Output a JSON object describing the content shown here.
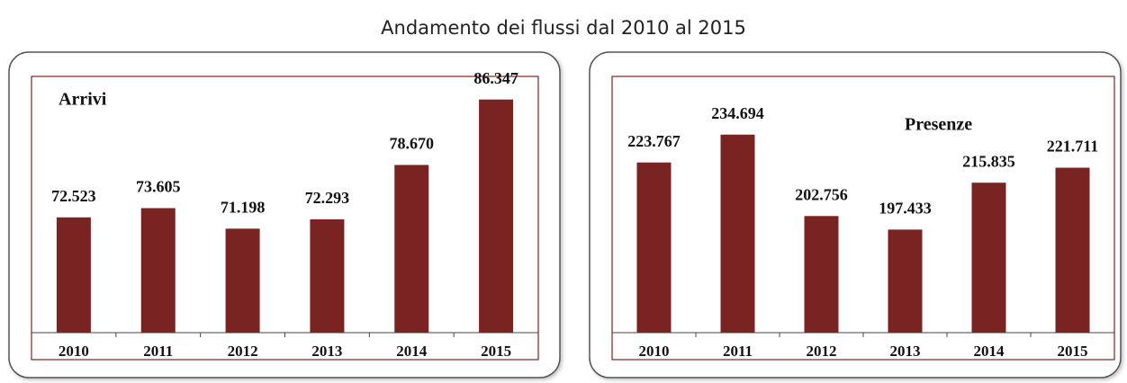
{
  "title": "Andamento dei flussi dal 2010 al 2015",
  "chart_data": [
    {
      "type": "bar",
      "title": "Arrivi",
      "categories": [
        "2010",
        "2011",
        "2012",
        "2013",
        "2014",
        "2015"
      ],
      "values": [
        72523,
        73605,
        71198,
        72293,
        78670,
        86347
      ],
      "value_labels": [
        "72.523",
        "73.605",
        "71.198",
        "72.293",
        "78.670",
        "86.347"
      ],
      "color": "#7a2323",
      "ylim": [
        59000,
        88000
      ]
    },
    {
      "type": "bar",
      "title": "Presenze",
      "categories": [
        "2010",
        "2011",
        "2012",
        "2013",
        "2014",
        "2015"
      ],
      "values": [
        223767,
        234694,
        202756,
        197433,
        215835,
        221711
      ],
      "value_labels": [
        "223.767",
        "234.694",
        "202.756",
        "197.433",
        "215.835",
        "221.711"
      ],
      "color": "#7a2323",
      "ylim": [
        157000,
        254000
      ]
    }
  ]
}
